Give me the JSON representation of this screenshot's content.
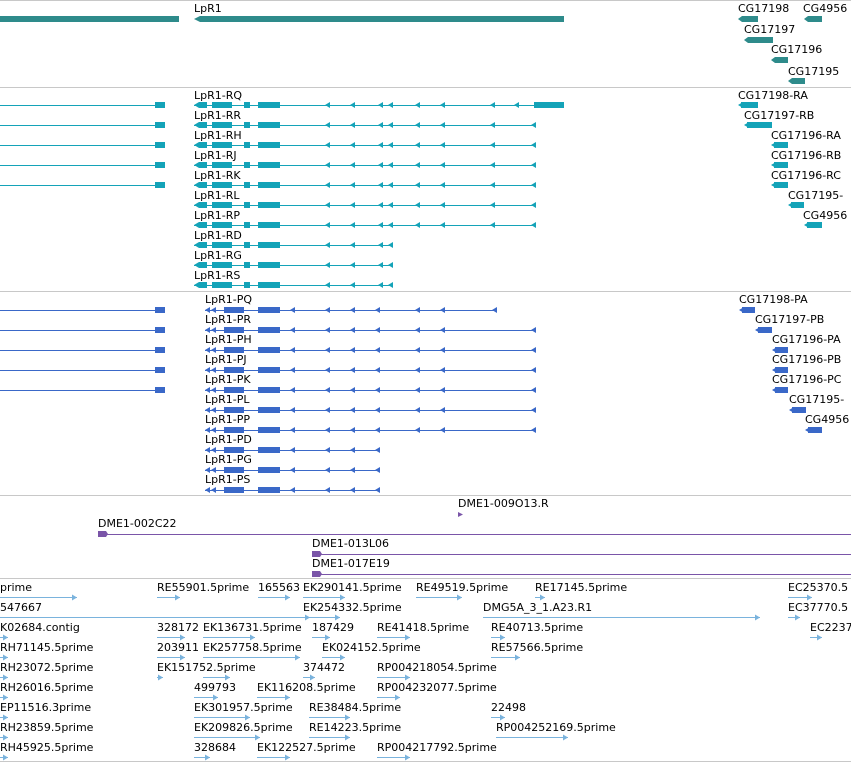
{
  "colors": {
    "gene": "#2e8b8b",
    "transcript": "#14a3b8",
    "protein": "#3a68c8",
    "clone": "#7a55a8",
    "est": "#7ab3dd",
    "separator": "#c8c8c8"
  },
  "tracks": {
    "gene": {
      "labels": [
        {
          "id": "lpr1",
          "text": "LpR1"
        },
        {
          "id": "cg17198",
          "text": "CG17198"
        },
        {
          "id": "cg4956",
          "text": "CG4956"
        },
        {
          "id": "cg17197",
          "text": "CG17197"
        },
        {
          "id": "cg17196",
          "text": "CG17196"
        },
        {
          "id": "cg17195",
          "text": "CG17195"
        }
      ]
    },
    "transcript": {
      "labels": [
        {
          "id": "rq",
          "text": "LpR1-RQ"
        },
        {
          "id": "rr",
          "text": "LpR1-RR"
        },
        {
          "id": "rh",
          "text": "LpR1-RH"
        },
        {
          "id": "rj",
          "text": "LpR1-RJ"
        },
        {
          "id": "rk",
          "text": "LpR1-RK"
        },
        {
          "id": "rl",
          "text": "LpR1-RL"
        },
        {
          "id": "rp",
          "text": "LpR1-RP"
        },
        {
          "id": "rd",
          "text": "LpR1-RD"
        },
        {
          "id": "rg",
          "text": "LpR1-RG"
        },
        {
          "id": "rs",
          "text": "LpR1-RS"
        },
        {
          "id": "cg17198ra",
          "text": "CG17198-RA"
        },
        {
          "id": "cg17197rb",
          "text": "CG17197-RB"
        },
        {
          "id": "cg17196ra",
          "text": "CG17196-RA"
        },
        {
          "id": "cg17196rb",
          "text": "CG17196-RB"
        },
        {
          "id": "cg17196rc",
          "text": "CG17196-RC"
        },
        {
          "id": "cg17195r",
          "text": "CG17195-"
        },
        {
          "id": "cg4956r",
          "text": "CG4956"
        }
      ]
    },
    "protein": {
      "labels": [
        {
          "id": "pq",
          "text": "LpR1-PQ"
        },
        {
          "id": "pr",
          "text": "LpR1-PR"
        },
        {
          "id": "ph",
          "text": "LpR1-PH"
        },
        {
          "id": "pj",
          "text": "LpR1-PJ"
        },
        {
          "id": "pk",
          "text": "LpR1-PK"
        },
        {
          "id": "pl",
          "text": "LpR1-PL"
        },
        {
          "id": "pp",
          "text": "LpR1-PP"
        },
        {
          "id": "pd",
          "text": "LpR1-PD"
        },
        {
          "id": "pg",
          "text": "LpR1-PG"
        },
        {
          "id": "ps",
          "text": "LpR1-PS"
        },
        {
          "id": "cg17198pa",
          "text": "CG17198-PA"
        },
        {
          "id": "cg17197pb",
          "text": "CG17197-PB"
        },
        {
          "id": "cg17196pa",
          "text": "CG17196-PA"
        },
        {
          "id": "cg17196pb",
          "text": "CG17196-PB"
        },
        {
          "id": "cg17196pc",
          "text": "CG17196-PC"
        },
        {
          "id": "cg17195p",
          "text": "CG17195-"
        },
        {
          "id": "cg4956p",
          "text": "CG4956"
        }
      ]
    },
    "clone": {
      "labels": [
        {
          "id": "c1",
          "text": "DME1-009O13.R"
        },
        {
          "id": "c2",
          "text": "DME1-002C22"
        },
        {
          "id": "c3",
          "text": "DME1-013L06"
        },
        {
          "id": "c4",
          "text": "DME1-017E19"
        }
      ]
    },
    "est": {
      "labels": [
        "prime",
        "RE55901.5prime",
        "165563",
        "EK290141.5prime",
        "RE49519.5prime",
        "RE17145.5prime",
        "EC25370.5",
        "547667",
        "EK254332.5prime",
        "DMG5A_3_1.A23.R1",
        "EC37770.5",
        "K02684.contig",
        "328172",
        "EK136731.5prime",
        "187429",
        "RE41418.5prime",
        "RE40713.5prime",
        "EC2237",
        "RH71145.5prime",
        "203911",
        "EK257758.5prime",
        "EK024152.5prime",
        "RE57566.5prime",
        "RH23072.5prime",
        "EK151752.5prime",
        "374472",
        "RP004218054.5prime",
        "RH26016.5prime",
        "499793",
        "EK116208.5prime",
        "RP004232077.5prime",
        "EP11516.3prime",
        "EK301957.5prime",
        "RE38484.5prime",
        "22498",
        "RH23859.5prime",
        "EK209826.5prime",
        "RE14223.5prime",
        "RP004252169.5prime",
        "RH45925.5prime",
        "328684",
        "EK122527.5prime",
        "RP004217792.5prime"
      ]
    }
  }
}
